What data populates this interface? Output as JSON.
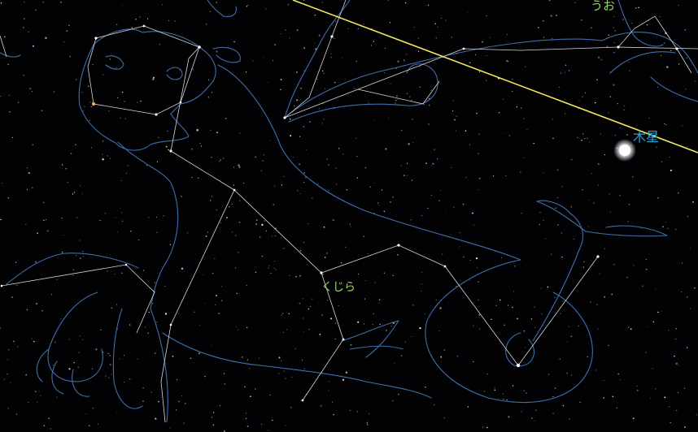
{
  "labels": {
    "pisces": "うお",
    "cetus": "くじら",
    "jupiter": "木星"
  },
  "colors": {
    "background": "#020205",
    "constellation_line": "#d8d8d8",
    "illustration_line": "#3f6fa8",
    "ecliptic": "#f2e85a",
    "constellation_label": "#9bd36a",
    "planet_label": "#2aa4d8",
    "planet": "#ffffff"
  }
}
